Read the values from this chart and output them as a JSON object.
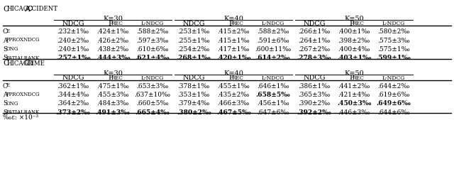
{
  "title1": "Chicago Accident",
  "title2": "Chicago Crime",
  "k_labels": [
    "K=30",
    "K=40",
    "K=50"
  ],
  "col_headers": [
    "NDCG",
    "Prec",
    "L-NDCG"
  ],
  "row_labels": [
    "CE",
    "ApproxNDCG",
    "SONG",
    "SpatialRank"
  ],
  "data_acc": [
    [
      ".232±1‰",
      ".424±1‰",
      ".588±2‰",
      ".253±1‰",
      ".415±2‰",
      ".588±2‰",
      ".266±1‰",
      ".400±1‰",
      ".580±2‰"
    ],
    [
      ".240±2‰",
      ".426±2‰",
      ".597±3‰",
      ".255±1‰",
      ".415±1‰",
      ".591±6‰",
      ".264±1‰",
      ".398±2‰",
      ".575±3‰"
    ],
    [
      ".240±1‰",
      ".438±2‰",
      ".610±6‰",
      ".254±2‰",
      ".417±1‰",
      ".600±11‰",
      ".267±2‰",
      ".400±4‰",
      ".575±1‰"
    ],
    [
      ".257±1‰",
      ".444±3‰",
      ".621±4‰",
      ".268±1‰",
      ".420±1‰",
      ".614±2‰",
      ".278±3‰",
      ".403±1‰",
      ".599±1‰"
    ]
  ],
  "data_crime": [
    [
      ".362±1‰",
      ".475±1‰",
      ".653±3‰",
      ".378±1‰",
      ".455±1‰",
      ".646±1‰",
      ".386±1‰",
      ".441±2‰",
      ".644±2‰"
    ],
    [
      ".344±4‰",
      ".455±3‰",
      ".637±10‰",
      ".353±1‰",
      ".435±2‰",
      ".658±5‰",
      ".365±3‰",
      ".421±4‰",
      ".619±6‰"
    ],
    [
      ".364±2‰",
      ".484±3‰",
      ".660±5‰",
      ".379±4‰",
      ".466±3‰",
      ".456±1‰",
      ".390±2‰",
      ".450±3‰",
      ".649±6‰"
    ],
    [
      ".373±2‰",
      ".491±3‰",
      ".665±4‰",
      ".380±2‰",
      ".467±5‰",
      ".647±6‰",
      ".392±2‰",
      ".446±3‰",
      ".644±6‰"
    ]
  ],
  "bold_acc": [
    [
      false,
      false,
      false,
      false,
      false,
      false,
      false,
      false,
      false
    ],
    [
      false,
      false,
      false,
      false,
      false,
      false,
      false,
      false,
      false
    ],
    [
      false,
      false,
      false,
      false,
      false,
      false,
      false,
      false,
      false
    ],
    [
      true,
      true,
      true,
      true,
      true,
      true,
      true,
      true,
      true
    ]
  ],
  "bold_crime": [
    [
      false,
      false,
      false,
      false,
      false,
      false,
      false,
      false,
      false
    ],
    [
      false,
      false,
      false,
      false,
      false,
      true,
      false,
      false,
      false
    ],
    [
      false,
      false,
      false,
      false,
      false,
      false,
      false,
      true,
      true
    ],
    [
      true,
      true,
      true,
      true,
      true,
      false,
      true,
      false,
      false
    ]
  ],
  "footnote": "‰ε: ×10⁻³"
}
